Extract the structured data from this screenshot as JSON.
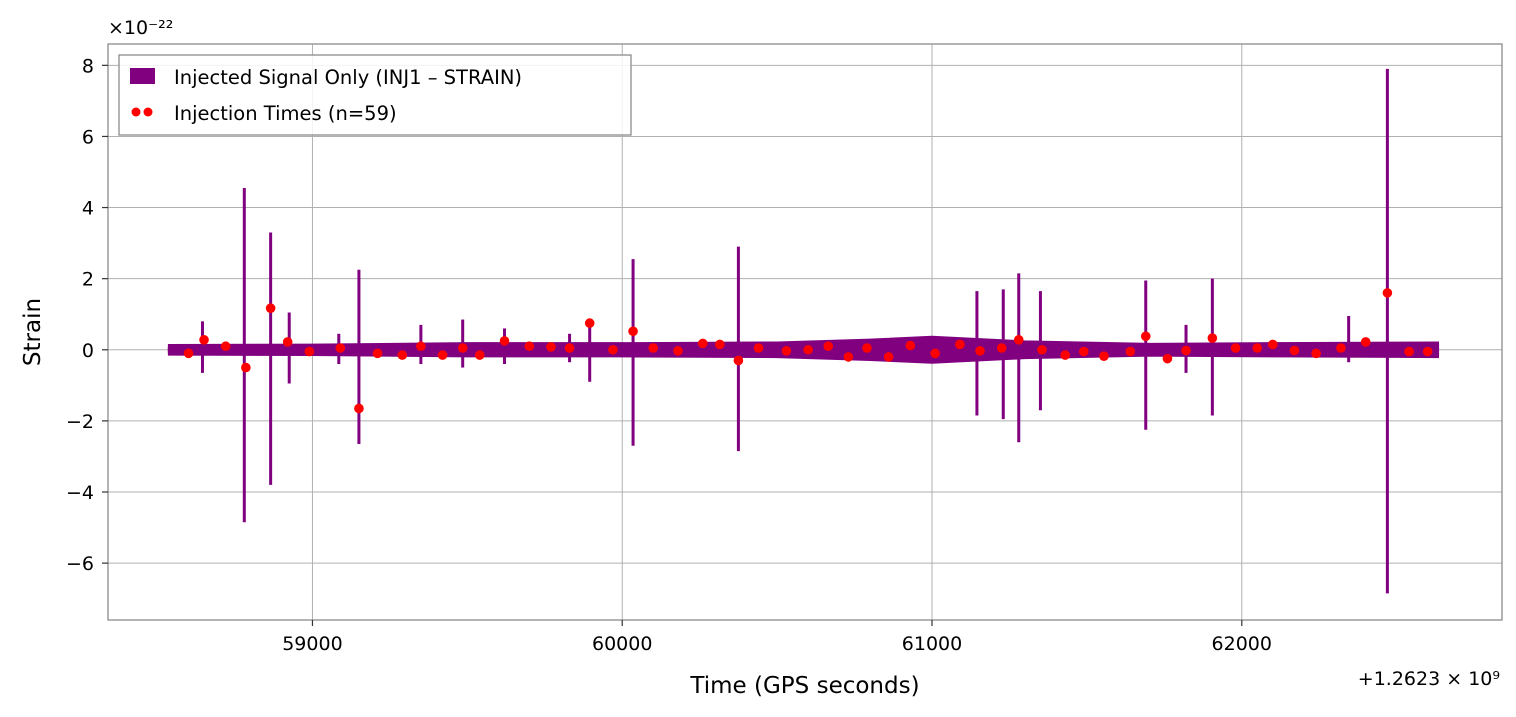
{
  "chart_data": {
    "type": "line",
    "title": "",
    "xlabel": "Time (GPS seconds)",
    "ylabel": "Strain",
    "x_offset_label": "+1.2623 × 10⁹",
    "x_offset": 1262300000,
    "y_scale_label": "×10⁻²²",
    "y_scale": 1e-22,
    "xlim": [
      58340,
      62840
    ],
    "ylim": [
      -7.6,
      8.6
    ],
    "x_ticks": [
      59000,
      60000,
      61000,
      62000
    ],
    "x_tick_labels": [
      "59000",
      "60000",
      "61000",
      "62000"
    ],
    "y_ticks": [
      -6,
      -4,
      -2,
      0,
      2,
      4,
      6,
      8
    ],
    "y_tick_labels": [
      "−6",
      "−4",
      "−2",
      "0",
      "2",
      "4",
      "6",
      "8"
    ],
    "grid": true,
    "legend_position": "top-left",
    "colors": {
      "signal": "#800080",
      "injection": "#ff0000",
      "grid": "#b0b0b0"
    },
    "signal_range": [
      58535,
      62635
    ],
    "noise_envelope": {
      "x": [
        58535,
        59000,
        59500,
        60000,
        60500,
        60800,
        61000,
        61300,
        61700,
        62100,
        62635
      ],
      "amp": [
        0.15,
        0.16,
        0.2,
        0.2,
        0.22,
        0.3,
        0.38,
        0.25,
        0.18,
        0.2,
        0.22
      ]
    },
    "spikes": [
      {
        "x": 58780,
        "max": 4.55,
        "min": -4.85
      },
      {
        "x": 58865,
        "max": 3.3,
        "min": -3.8
      },
      {
        "x": 58925,
        "max": 1.05,
        "min": -0.95
      },
      {
        "x": 58645,
        "max": 0.8,
        "min": -0.65
      },
      {
        "x": 59085,
        "max": 0.45,
        "min": -0.4
      },
      {
        "x": 59150,
        "max": 2.25,
        "min": -2.65
      },
      {
        "x": 59350,
        "max": 0.7,
        "min": -0.4
      },
      {
        "x": 59485,
        "max": 0.85,
        "min": -0.5
      },
      {
        "x": 59620,
        "max": 0.6,
        "min": -0.4
      },
      {
        "x": 59830,
        "max": 0.45,
        "min": -0.35
      },
      {
        "x": 59895,
        "max": 0.85,
        "min": -0.9
      },
      {
        "x": 60035,
        "max": 2.55,
        "min": -2.7
      },
      {
        "x": 60375,
        "max": 2.9,
        "min": -2.85
      },
      {
        "x": 61145,
        "max": 1.65,
        "min": -1.85
      },
      {
        "x": 61230,
        "max": 1.7,
        "min": -1.95
      },
      {
        "x": 61280,
        "max": 2.15,
        "min": -2.6
      },
      {
        "x": 61350,
        "max": 1.65,
        "min": -1.7
      },
      {
        "x": 61690,
        "max": 1.95,
        "min": -2.25
      },
      {
        "x": 61820,
        "max": 0.7,
        "min": -0.65
      },
      {
        "x": 61905,
        "max": 2.0,
        "min": -1.85
      },
      {
        "x": 62345,
        "max": 0.95,
        "min": -0.35
      },
      {
        "x": 62470,
        "max": 7.9,
        "min": -6.85
      }
    ],
    "series": [
      {
        "name": "Injected Signal Only (INJ1 – STRAIN)",
        "kind": "line",
        "color": "#800080"
      },
      {
        "name": "Injection Times (n=59)",
        "kind": "scatter",
        "color": "#ff0000",
        "x": [
          58600,
          58650,
          58720,
          58785,
          58865,
          58920,
          58990,
          59090,
          59150,
          59210,
          59290,
          59350,
          59420,
          59485,
          59540,
          59620,
          59700,
          59770,
          59830,
          59895,
          59970,
          60035,
          60100,
          60180,
          60260,
          60315,
          60375,
          60440,
          60530,
          60600,
          60665,
          60730,
          60790,
          60860,
          60930,
          61010,
          61090,
          61155,
          61225,
          61280,
          61355,
          61430,
          61490,
          61555,
          61640,
          61690,
          61760,
          61820,
          61905,
          61980,
          62050,
          62100,
          62170,
          62240,
          62320,
          62400,
          62470,
          62540,
          62600
        ],
        "y": [
          -0.1,
          0.28,
          0.1,
          -0.5,
          1.17,
          0.22,
          -0.05,
          0.05,
          -1.65,
          -0.1,
          -0.15,
          0.1,
          -0.15,
          0.05,
          -0.15,
          0.25,
          0.1,
          0.08,
          0.05,
          0.75,
          0.0,
          0.52,
          0.05,
          -0.03,
          0.18,
          0.15,
          -0.3,
          0.05,
          -0.03,
          0.0,
          0.1,
          -0.2,
          0.05,
          -0.2,
          0.12,
          -0.1,
          0.15,
          -0.03,
          0.05,
          0.28,
          0.0,
          -0.15,
          -0.05,
          -0.18,
          -0.05,
          0.38,
          -0.25,
          -0.02,
          0.33,
          0.05,
          0.05,
          0.15,
          -0.02,
          -0.1,
          0.05,
          0.22,
          1.6,
          -0.05,
          -0.05
        ]
      }
    ]
  }
}
